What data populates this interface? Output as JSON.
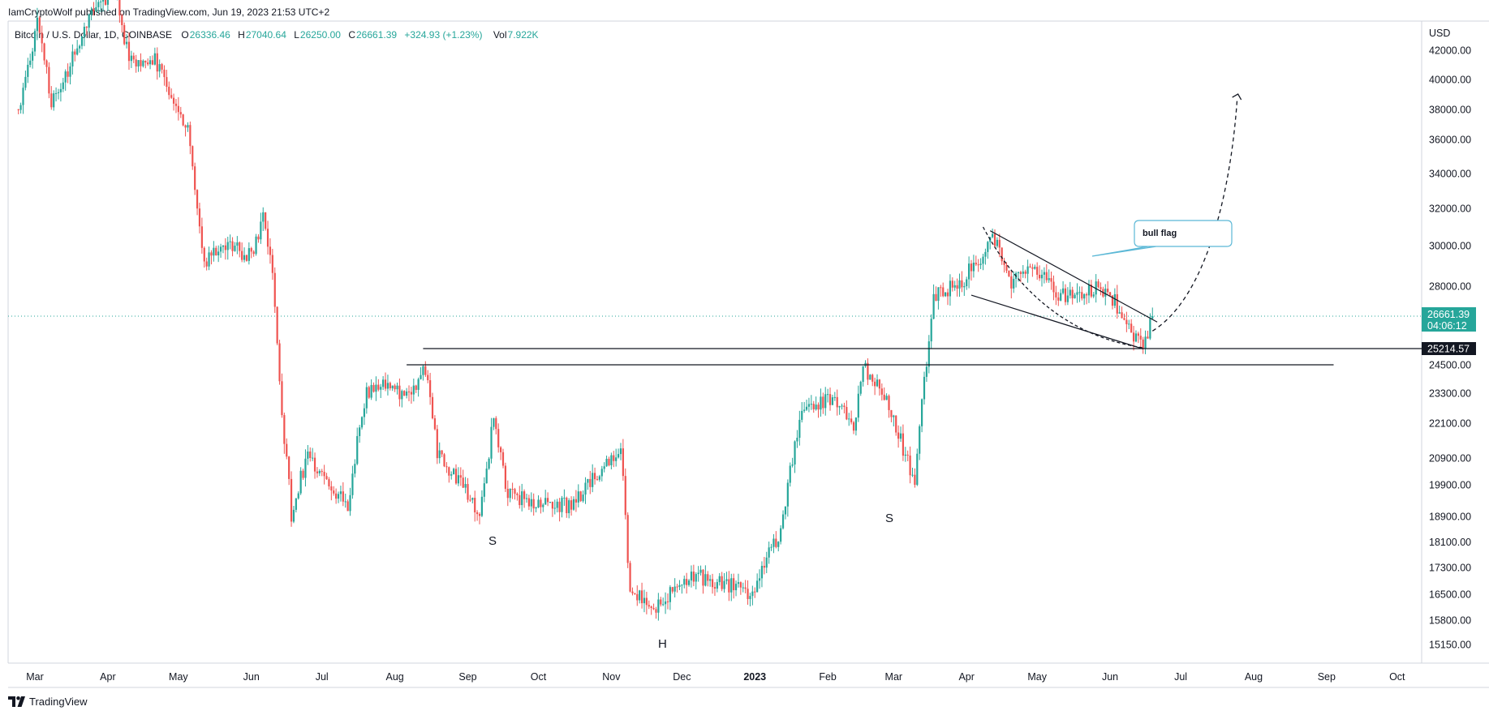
{
  "header": {
    "published": "IamCryptoWolf published on TradingView.com, Jun 19, 2023 21:53 UTC+2"
  },
  "ohlc": {
    "symbol": "Bitcoin / U.S. Dollar, 1D, COINBASE",
    "o_label": "O",
    "o": "26336.46",
    "h_label": "H",
    "h": "27040.64",
    "l_label": "L",
    "l": "26250.00",
    "c_label": "C",
    "c": "26661.39",
    "change": "+324.93 (+1.23%)",
    "vol_label": "Vol",
    "vol": "7.922K"
  },
  "axis": {
    "currency": "USD",
    "price_labels": [
      "42000.00",
      "40000.00",
      "38000.00",
      "36000.00",
      "34000.00",
      "32000.00",
      "30000.00",
      "28000.00",
      "24500.00",
      "23300.00",
      "22100.00",
      "20900.00",
      "19900.00",
      "18900.00",
      "18100.00",
      "17300.00",
      "16500.00",
      "15800.00",
      "15150.00"
    ],
    "month_labels": [
      "Mar",
      "Apr",
      "May",
      "Jun",
      "Jul",
      "Aug",
      "Sep",
      "Oct",
      "Nov",
      "Dec",
      "2023",
      "Feb",
      "Mar",
      "Apr",
      "May",
      "Jun",
      "Jul",
      "Aug",
      "Sep",
      "Oct"
    ],
    "current_price": "26661.39",
    "countdown": "04:06:12",
    "line_price": "25214.57"
  },
  "annotations": {
    "shoulder_left": "S",
    "head": "H",
    "shoulder_right": "S",
    "flag_label": "bull flag"
  },
  "colors": {
    "up": "#26a69a",
    "down": "#ef5350",
    "lines": "#131722",
    "callout": "#5bb8d6"
  },
  "footer": {
    "brand": "TradingView"
  },
  "chart_data": {
    "type": "candlestick",
    "symbol": "BTCUSD",
    "timeframe": "1D",
    "exchange": "COINBASE",
    "current_price": 26661.39,
    "horizontal_levels": [
      25214.57,
      24500
    ],
    "x_range": [
      "2022-02-20",
      "2023-10-31"
    ],
    "y_range": [
      14800,
      43000
    ],
    "price_path": [
      [
        "2022-02-22",
        38000
      ],
      [
        "2022-03-02",
        44000
      ],
      [
        "2022-03-08",
        38500
      ],
      [
        "2022-03-16",
        41000
      ],
      [
        "2022-03-25",
        44500
      ],
      [
        "2022-04-05",
        46000
      ],
      [
        "2022-04-10",
        41000
      ],
      [
        "2022-04-20",
        41500
      ],
      [
        "2022-04-30",
        38500
      ],
      [
        "2022-05-05",
        36500
      ],
      [
        "2022-05-12",
        29000
      ],
      [
        "2022-05-20",
        30000
      ],
      [
        "2022-06-01",
        29500
      ],
      [
        "2022-06-06",
        31500
      ],
      [
        "2022-06-10",
        29000
      ],
      [
        "2022-06-14",
        22500
      ],
      [
        "2022-06-18",
        19000
      ],
      [
        "2022-06-25",
        21000
      ],
      [
        "2022-07-05",
        19800
      ],
      [
        "2022-07-12",
        19300
      ],
      [
        "2022-07-20",
        23400
      ],
      [
        "2022-07-28",
        23800
      ],
      [
        "2022-08-05",
        23000
      ],
      [
        "2022-08-14",
        24400
      ],
      [
        "2022-08-19",
        21000
      ],
      [
        "2022-08-30",
        19800
      ],
      [
        "2022-09-06",
        18800
      ],
      [
        "2022-09-12",
        22300
      ],
      [
        "2022-09-18",
        19500
      ],
      [
        "2022-09-30",
        19400
      ],
      [
        "2022-10-15",
        19200
      ],
      [
        "2022-10-29",
        20700
      ],
      [
        "2022-11-05",
        21100
      ],
      [
        "2022-11-09",
        16500
      ],
      [
        "2022-11-20",
        16200
      ],
      [
        "2022-12-05",
        17100
      ],
      [
        "2022-12-20",
        16800
      ],
      [
        "2022-12-31",
        16550
      ],
      [
        "2023-01-12",
        18500
      ],
      [
        "2023-01-21",
        22800
      ],
      [
        "2023-02-05",
        23000
      ],
      [
        "2023-02-12",
        21800
      ],
      [
        "2023-02-16",
        24500
      ],
      [
        "2023-02-25",
        23200
      ],
      [
        "2023-03-10",
        20000
      ],
      [
        "2023-03-18",
        27500
      ],
      [
        "2023-03-31",
        28400
      ],
      [
        "2023-04-13",
        30400
      ],
      [
        "2023-04-20",
        28200
      ],
      [
        "2023-04-28",
        29300
      ],
      [
        "2023-05-10",
        27600
      ],
      [
        "2023-05-28",
        28000
      ],
      [
        "2023-06-05",
        27000
      ],
      [
        "2023-06-15",
        25100
      ],
      [
        "2023-06-19",
        26661
      ]
    ],
    "projection": [
      [
        "2023-06-20",
        26900
      ],
      [
        "2023-07-10",
        30000
      ],
      [
        "2023-07-25",
        39000
      ]
    ]
  }
}
